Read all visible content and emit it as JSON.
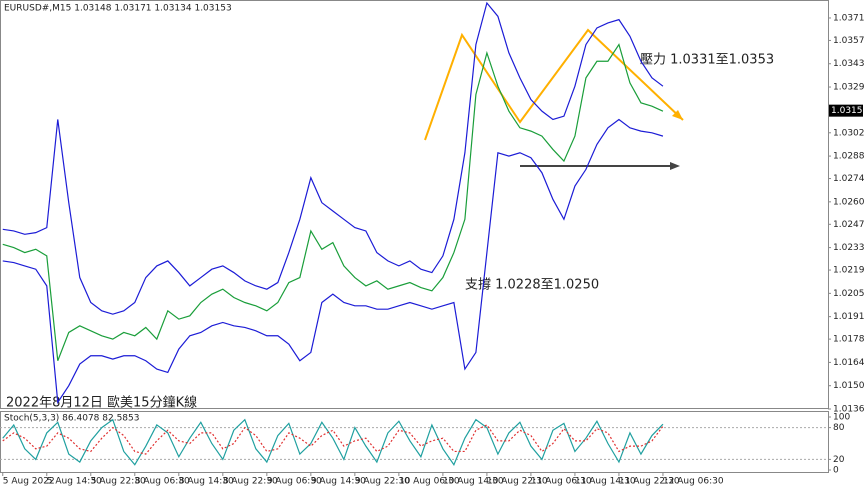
{
  "chart_data": [
    {
      "type": "line",
      "title": "EURUSD#,M15  1.03148 1.03171 1.03134 1.03153",
      "annotations": [
        "壓力 1.0331至1.0353",
        "支撐 1.0228至1.0250",
        "2022年8月12日 歐美15分鐘K線"
      ],
      "x": [
        0,
        2,
        4,
        6,
        8,
        10,
        12,
        14,
        16,
        18,
        20,
        22,
        24,
        26,
        28,
        30,
        32,
        34,
        36,
        38,
        40,
        42,
        44,
        46,
        48,
        50,
        52,
        54,
        56,
        58,
        60,
        62,
        64,
        66,
        68,
        70,
        72,
        74,
        76,
        78,
        80,
        82,
        84,
        86,
        88,
        90,
        92,
        94,
        96,
        98,
        100,
        102,
        104,
        106,
        108,
        110,
        112,
        114,
        116,
        118,
        120
      ],
      "xlim": [
        -0.5,
        150
      ],
      "xticks": [
        {
          "value": 0,
          "label": "5 Aug 2022"
        },
        {
          "value": 8,
          "label": "5 Aug 14:30"
        },
        {
          "value": 16,
          "label": "5 Aug 22:30"
        },
        {
          "value": 24,
          "label": "8 Aug 06:30"
        },
        {
          "value": 32,
          "label": "8 Aug 14:30"
        },
        {
          "value": 40,
          "label": "8 Aug 22:30"
        },
        {
          "value": 48,
          "label": "9 Aug 06:30"
        },
        {
          "value": 56,
          "label": "9 Aug 14:30"
        },
        {
          "value": 64,
          "label": "9 Aug 22:30"
        },
        {
          "value": 72,
          "label": "10 Aug 06:30"
        },
        {
          "value": 80,
          "label": "10 Aug 14:30"
        },
        {
          "value": 88,
          "label": "10 Aug 22:30"
        },
        {
          "value": 96,
          "label": "11 Aug 06:30"
        },
        {
          "value": 104,
          "label": "11 Aug 14:30"
        },
        {
          "value": 112,
          "label": "11 Aug 22:30"
        },
        {
          "value": 120,
          "label": "12 Aug 06:30"
        }
      ],
      "ylim": [
        1.0136,
        1.038
      ],
      "yticks": [
        {
          "value": 1.0136,
          "label": "1.01360"
        },
        {
          "value": 1.015,
          "label": "1.01500"
        },
        {
          "value": 1.0164,
          "label": "1.01640"
        },
        {
          "value": 1.0178,
          "label": "1.01780"
        },
        {
          "value": 1.01915,
          "label": "1.01915"
        },
        {
          "value": 1.02055,
          "label": "1.02055"
        },
        {
          "value": 1.02195,
          "label": "1.02195"
        },
        {
          "value": 1.0233,
          "label": "1.02330"
        },
        {
          "value": 1.0247,
          "label": "1.02470"
        },
        {
          "value": 1.02605,
          "label": "1.02605"
        },
        {
          "value": 1.02745,
          "label": "1.02745"
        },
        {
          "value": 1.0288,
          "label": "1.02880"
        },
        {
          "value": 1.0302,
          "label": "1.03020"
        },
        {
          "value": 1.03295,
          "label": "1.03295"
        },
        {
          "value": 1.03435,
          "label": "1.03435"
        },
        {
          "value": 1.03575,
          "label": "1.03575"
        },
        {
          "value": 1.0371,
          "label": "1.03710"
        }
      ],
      "last_price": 1.03153,
      "series": [
        {
          "color": "#1a9e3a",
          "values": [
            1.0235,
            1.0233,
            1.023,
            1.0232,
            1.0228,
            1.0165,
            1.0182,
            1.0186,
            1.0183,
            1.018,
            1.0178,
            1.0182,
            1.018,
            1.0185,
            1.0178,
            1.0195,
            1.019,
            1.0192,
            1.02,
            1.0205,
            1.0208,
            1.0203,
            1.02,
            1.0198,
            1.0195,
            1.02,
            1.0212,
            1.0215,
            1.0243,
            1.0232,
            1.0236,
            1.0222,
            1.0215,
            1.021,
            1.0213,
            1.0208,
            1.021,
            1.0212,
            1.0209,
            1.0207,
            1.0215,
            1.023,
            1.025,
            1.0325,
            1.035,
            1.033,
            1.0315,
            1.0305,
            1.0303,
            1.03,
            1.0292,
            1.0285,
            1.03,
            1.0335,
            1.0345,
            1.0345,
            1.0355,
            1.0332,
            1.032,
            1.0318,
            1.0315
          ]
        },
        {
          "color": "#1c1cd6",
          "values": [
            1.0244,
            1.0243,
            1.0241,
            1.0242,
            1.0245,
            1.031,
            1.026,
            1.0215,
            1.02,
            1.0195,
            1.0193,
            1.0195,
            1.02,
            1.0215,
            1.0222,
            1.0225,
            1.0218,
            1.021,
            1.0215,
            1.022,
            1.0222,
            1.0218,
            1.0213,
            1.021,
            1.0208,
            1.0212,
            1.023,
            1.025,
            1.0275,
            1.026,
            1.0255,
            1.025,
            1.0245,
            1.0243,
            1.023,
            1.0225,
            1.0222,
            1.0225,
            1.022,
            1.0218,
            1.0228,
            1.025,
            1.029,
            1.0355,
            1.038,
            1.0372,
            1.035,
            1.0335,
            1.0322,
            1.0315,
            1.031,
            1.0312,
            1.033,
            1.0355,
            1.0365,
            1.0368,
            1.037,
            1.036,
            1.0345,
            1.0335,
            1.033
          ]
        },
        {
          "color": "#1c1cd6",
          "values": [
            1.0225,
            1.0224,
            1.0222,
            1.022,
            1.021,
            1.014,
            1.015,
            1.0163,
            1.0168,
            1.0168,
            1.0166,
            1.0168,
            1.0168,
            1.0165,
            1.016,
            1.0158,
            1.0172,
            1.018,
            1.0182,
            1.0186,
            1.0188,
            1.0186,
            1.0185,
            1.0183,
            1.018,
            1.018,
            1.0175,
            1.0165,
            1.017,
            1.02,
            1.0205,
            1.02,
            1.0198,
            1.0198,
            1.0196,
            1.0196,
            1.0198,
            1.02,
            1.0198,
            1.0196,
            1.0198,
            1.02,
            1.016,
            1.017,
            1.023,
            1.029,
            1.0288,
            1.029,
            1.0287,
            1.0278,
            1.0262,
            1.025,
            1.027,
            1.028,
            1.0295,
            1.0305,
            1.031,
            1.0305,
            1.0303,
            1.0302,
            1.03
          ]
        }
      ]
    },
    {
      "type": "line",
      "title": "Stoch(5,3,3) 86.4078 82.5853",
      "ylim": [
        0,
        100
      ],
      "yticks": [
        0,
        20,
        80,
        100
      ],
      "series": [
        {
          "color": "#20a0a0",
          "values": [
            60,
            85,
            40,
            20,
            70,
            90,
            30,
            15,
            55,
            80,
            95,
            35,
            10,
            45,
            85,
            70,
            25,
            60,
            90,
            50,
            20,
            75,
            95,
            40,
            15,
            65,
            88,
            30,
            50,
            90,
            60,
            20,
            80,
            45,
            15,
            70,
            92,
            55,
            25,
            85,
            40,
            10,
            60,
            95,
            80,
            30,
            70,
            90,
            45,
            20,
            75,
            88,
            35,
            60,
            92,
            50,
            15,
            70,
            30,
            65,
            86.4078
          ]
        },
        {
          "color": "#e03030",
          "values": [
            55,
            70,
            60,
            40,
            45,
            70,
            60,
            40,
            35,
            60,
            80,
            65,
            35,
            30,
            55,
            75,
            55,
            50,
            70,
            70,
            40,
            50,
            80,
            65,
            35,
            40,
            70,
            60,
            45,
            65,
            75,
            45,
            55,
            60,
            35,
            45,
            75,
            70,
            45,
            55,
            60,
            35,
            35,
            75,
            85,
            55,
            55,
            75,
            65,
            35,
            50,
            78,
            55,
            55,
            78,
            70,
            35,
            45,
            45,
            55,
            82.5853
          ]
        }
      ]
    }
  ]
}
